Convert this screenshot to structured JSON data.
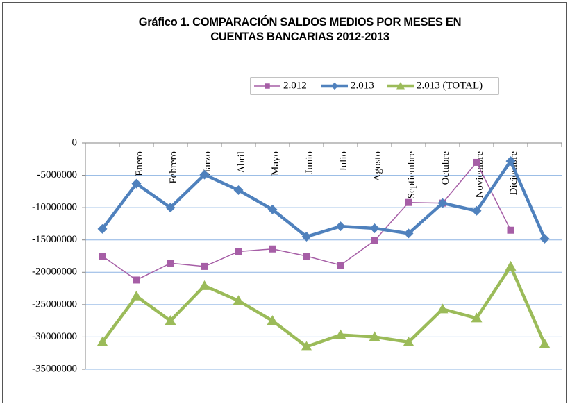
{
  "chart_data": {
    "type": "line",
    "title": "Gráfico 1. COMPARACIÓN SALDOS MEDIOS POR MESES EN CUENTAS BANCARIAS 2012-2013",
    "categories": [
      null,
      "Enero",
      "Febrero",
      "Marzo",
      "Abril",
      "Mayo",
      "Junio",
      "Julio",
      "Agosto",
      "Septiembre",
      "Octubre",
      "Noviembre",
      "Diciembre",
      null
    ],
    "series": [
      {
        "name": "2.012",
        "color": "#a65ea6",
        "marker": "square",
        "values": [
          -17500000,
          -21200000,
          -18600000,
          -19100000,
          -16800000,
          -16400000,
          -17500000,
          -18900000,
          -15100000,
          -9200000,
          -9300000,
          -3000000,
          -13500000,
          null
        ]
      },
      {
        "name": "2.013",
        "color": "#4f81bd",
        "marker": "diamond",
        "values": [
          -13300000,
          -6300000,
          -10000000,
          -4900000,
          -7300000,
          -10300000,
          -14500000,
          -12900000,
          -13200000,
          -14000000,
          -9300000,
          -10500000,
          -2800000,
          -14800000
        ]
      },
      {
        "name": "2.013 (TOTAL)",
        "color": "#9bbb59",
        "marker": "triangle",
        "values": [
          -30800000,
          -23700000,
          -27500000,
          -22100000,
          -24400000,
          -27500000,
          -31500000,
          -29700000,
          -30000000,
          -30800000,
          -25700000,
          -27100000,
          -19100000,
          -31100000
        ]
      }
    ],
    "ylim": [
      -35000000,
      0
    ],
    "yticks": [
      0,
      -5000000,
      -10000000,
      -15000000,
      -20000000,
      -25000000,
      -30000000,
      -35000000
    ],
    "grid": true,
    "legend": "top"
  }
}
